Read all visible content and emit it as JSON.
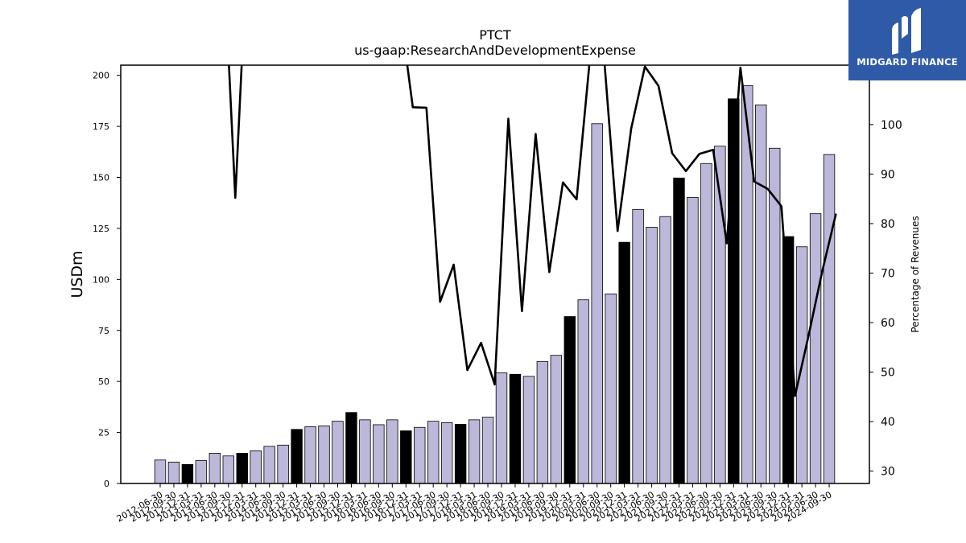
{
  "logo": {
    "text": "MIDGARD FINANCE",
    "icon": "midgard-m-icon",
    "bg_color": "#2f5aa8"
  },
  "chart_data": {
    "type": "bar",
    "title": "PTCT",
    "subtitle": "us-gaap:ResearchAndDevelopmentExpense",
    "ylabel": "USDm",
    "y2label": "Percentage of Revenues",
    "ylim": [
      0,
      205
    ],
    "y2lim": [
      27.5,
      112
    ],
    "yticks": [
      0,
      25,
      50,
      75,
      100,
      125,
      150,
      175,
      200
    ],
    "y2ticks": [
      30,
      40,
      50,
      60,
      70,
      80,
      90,
      100
    ],
    "categories": [
      "2012-06-30",
      "2012-09-30",
      "2012-12-31",
      "2013-03-31",
      "2013-06-30",
      "2013-09-30",
      "2013-12-31",
      "2014-03-31",
      "2014-06-30",
      "2014-09-30",
      "2014-12-31",
      "2015-03-31",
      "2015-06-30",
      "2015-09-30",
      "2015-12-31",
      "2016-03-31",
      "2016-06-30",
      "2016-09-30",
      "2016-12-31",
      "2017-03-31",
      "2017-06-30",
      "2017-09-30",
      "2017-12-31",
      "2018-03-31",
      "2018-06-30",
      "2018-09-30",
      "2018-12-31",
      "2019-03-31",
      "2019-06-30",
      "2019-09-30",
      "2019-12-31",
      "2020-03-31",
      "2020-06-30",
      "2020-09-30",
      "2020-12-31",
      "2021-03-31",
      "2021-06-30",
      "2021-09-30",
      "2021-12-31",
      "2022-03-31",
      "2022-06-30",
      "2022-09-30",
      "2022-12-31",
      "2023-03-31",
      "2023-06-30",
      "2023-09-30",
      "2023-12-31",
      "2024-03-31",
      "2024-06-30",
      "2024-09-30"
    ],
    "series": [
      {
        "kind": "bar",
        "values": [
          11.5,
          10.5,
          9.3,
          11.2,
          14.8,
          13.5,
          14.8,
          16.0,
          18.2,
          18.8,
          26.5,
          27.8,
          28.2,
          30.5,
          34.8,
          31.2,
          28.8,
          31.2,
          25.8,
          27.5,
          30.5,
          29.8,
          29.0,
          31.2,
          32.5,
          54.2,
          53.5,
          52.5,
          59.8,
          62.8,
          81.8,
          90.0,
          176.3,
          92.9,
          118.2,
          134.3,
          125.6,
          130.8,
          149.7,
          140.2,
          156.8,
          165.3,
          188.5,
          195.0,
          185.5,
          164.3,
          121.0,
          116.0,
          132.2,
          161.2
        ],
        "highlight": [
          false,
          false,
          true,
          false,
          false,
          false,
          true,
          false,
          false,
          false,
          true,
          false,
          false,
          false,
          true,
          false,
          false,
          false,
          true,
          false,
          false,
          false,
          true,
          false,
          false,
          false,
          true,
          false,
          false,
          false,
          true,
          false,
          false,
          false,
          true,
          false,
          false,
          false,
          true,
          false,
          false,
          false,
          true,
          false,
          false,
          false,
          true,
          false,
          false,
          false
        ],
        "color": "#bcb8da",
        "highlight_color": "#000000"
      },
      {
        "kind": "line",
        "axis": "right",
        "values": [
          null,
          null,
          null,
          null,
          null,
          null,
          null,
          null,
          null,
          null,
          null,
          null,
          null,
          null,
          null,
          null,
          null,
          null,
          null,
          null,
          null,
          null,
          null,
          null,
          null,
          null,
          null,
          null,
          null,
          null,
          null,
          null,
          null,
          null,
          null,
          null,
          null,
          null,
          null,
          null,
          null,
          null,
          null,
          null,
          null,
          null,
          null,
          null,
          null,
          null
        ],
        "points": [
          [
            5,
            114
          ],
          [
            5.5,
            85.2
          ],
          [
            6,
            114
          ],
          [
            18,
            114
          ],
          [
            18.5,
            103.5
          ],
          [
            19.5,
            103.4
          ],
          [
            20.5,
            64.2
          ],
          [
            21.5,
            71.7
          ],
          [
            22.5,
            50.4
          ],
          [
            23.5,
            55.9
          ],
          [
            24.5,
            47.5
          ],
          [
            25.5,
            101.2
          ],
          [
            26.5,
            62.3
          ],
          [
            27.5,
            98.1
          ],
          [
            28.5,
            70.2
          ],
          [
            29.5,
            88.3
          ],
          [
            30.5,
            84.9
          ],
          [
            31.5,
            114
          ],
          [
            32.5,
            114
          ],
          [
            33.5,
            78.5
          ],
          [
            34.5,
            99.2
          ],
          [
            35.5,
            111.7
          ],
          [
            36.5,
            107.8
          ],
          [
            37.5,
            94.2
          ],
          [
            38.5,
            90.6
          ],
          [
            39.5,
            94.1
          ],
          [
            40.5,
            94.9
          ],
          [
            41.5,
            76.0
          ],
          [
            42.5,
            111.5
          ],
          [
            43.5,
            88.5
          ],
          [
            44.5,
            87.0
          ],
          [
            45.5,
            83.5
          ],
          [
            46.5,
            45.2
          ],
          [
            47.5,
            57.5
          ],
          [
            48.5,
            70.5
          ],
          [
            49.5,
            82.0
          ]
        ],
        "color": "#000000"
      }
    ],
    "grid": false,
    "legend": "none"
  }
}
